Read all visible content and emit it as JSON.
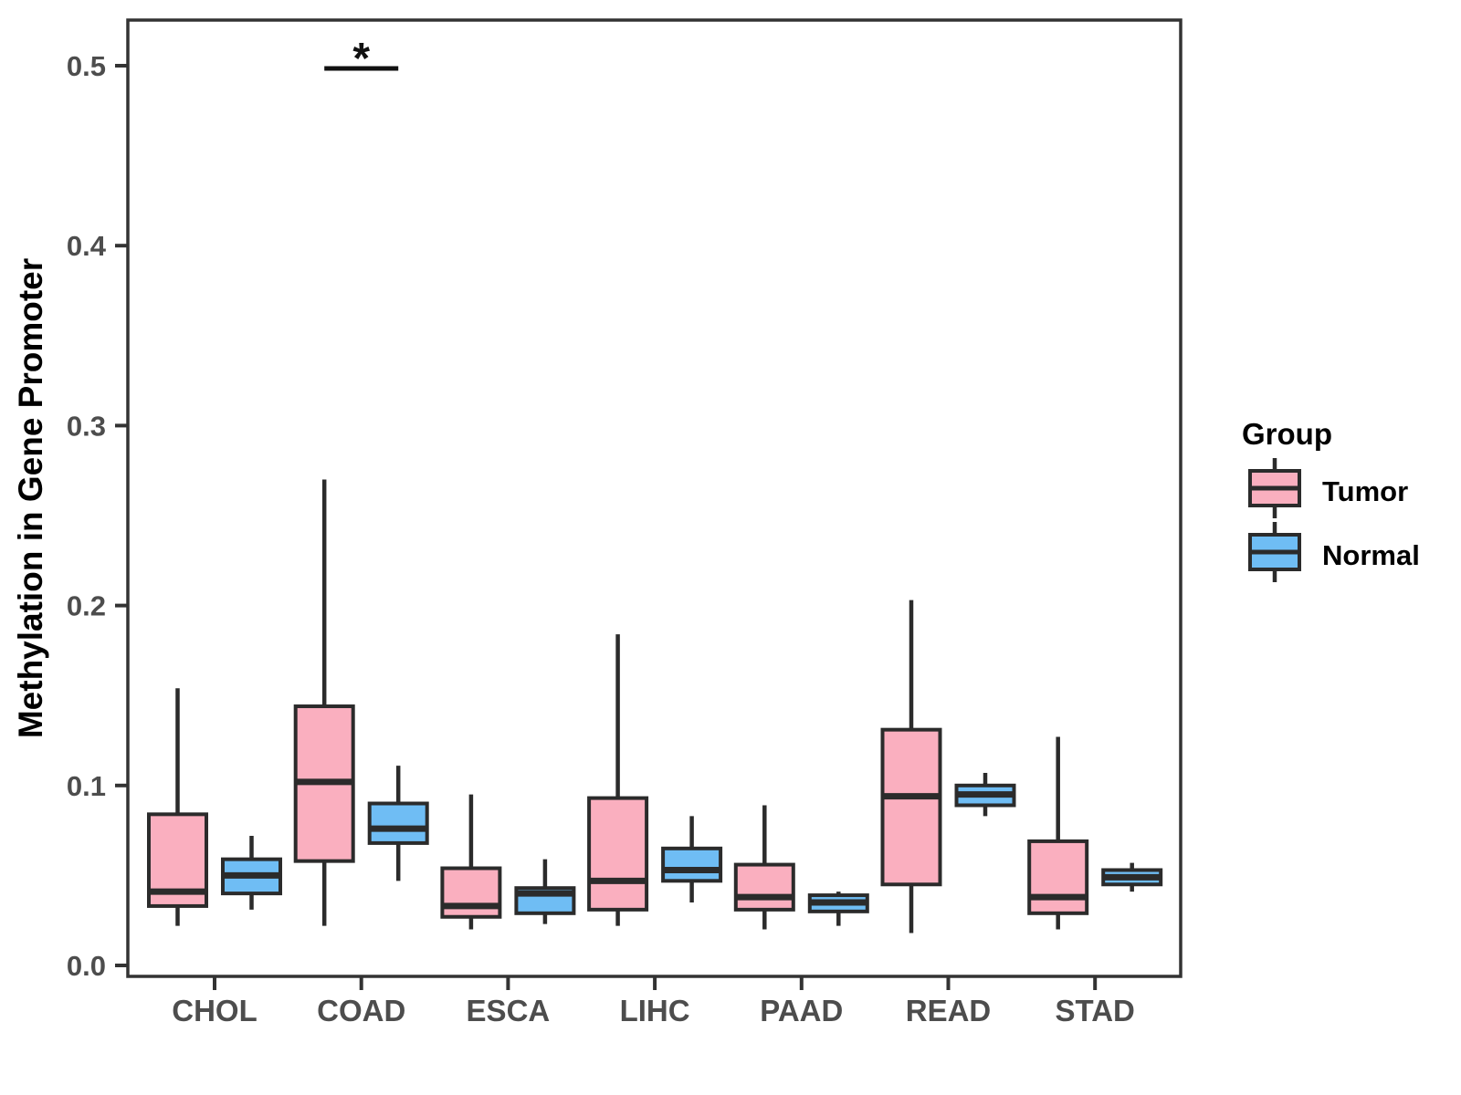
{
  "chart_data": {
    "type": "boxplot",
    "title": "",
    "ylabel": "Methylation in Gene Promoter",
    "xlabel": "",
    "categories": [
      "CHOL",
      "COAD",
      "ESCA",
      "LIHC",
      "PAAD",
      "READ",
      "STAD"
    ],
    "y_axis": {
      "min": 0.0,
      "max": 0.53,
      "tick_values": [
        0.0,
        0.1,
        0.2,
        0.3,
        0.4,
        0.5
      ],
      "tick_labels": [
        "0.0",
        "0.1",
        "0.2",
        "0.3",
        "0.4",
        "0.5"
      ],
      "grid": false
    },
    "legend": {
      "title": "Group",
      "position": "right",
      "entries": [
        {
          "label": "Tumor",
          "color": "#FAAFBF"
        },
        {
          "label": "Normal",
          "color": "#6FBDF4"
        }
      ]
    },
    "series": [
      {
        "name": "Tumor",
        "color": "#FAAFBF",
        "boxes": [
          {
            "category": "CHOL",
            "min": 0.022,
            "q1": 0.033,
            "median": 0.041,
            "q3": 0.084,
            "max": 0.154
          },
          {
            "category": "COAD",
            "min": 0.022,
            "q1": 0.058,
            "median": 0.102,
            "q3": 0.144,
            "max": 0.27
          },
          {
            "category": "ESCA",
            "min": 0.02,
            "q1": 0.027,
            "median": 0.033,
            "q3": 0.054,
            "max": 0.095
          },
          {
            "category": "LIHC",
            "min": 0.022,
            "q1": 0.031,
            "median": 0.047,
            "q3": 0.093,
            "max": 0.184
          },
          {
            "category": "PAAD",
            "min": 0.02,
            "q1": 0.031,
            "median": 0.038,
            "q3": 0.056,
            "max": 0.089
          },
          {
            "category": "READ",
            "min": 0.018,
            "q1": 0.045,
            "median": 0.094,
            "q3": 0.131,
            "max": 0.203
          },
          {
            "category": "STAD",
            "min": 0.02,
            "q1": 0.029,
            "median": 0.038,
            "q3": 0.069,
            "max": 0.127
          }
        ]
      },
      {
        "name": "Normal",
        "color": "#6FBDF4",
        "boxes": [
          {
            "category": "CHOL",
            "min": 0.031,
            "q1": 0.04,
            "median": 0.05,
            "q3": 0.059,
            "max": 0.072
          },
          {
            "category": "COAD",
            "min": 0.047,
            "q1": 0.068,
            "median": 0.076,
            "q3": 0.09,
            "max": 0.111
          },
          {
            "category": "ESCA",
            "min": 0.023,
            "q1": 0.029,
            "median": 0.04,
            "q3": 0.043,
            "max": 0.059
          },
          {
            "category": "LIHC",
            "min": 0.035,
            "q1": 0.047,
            "median": 0.053,
            "q3": 0.065,
            "max": 0.083
          },
          {
            "category": "PAAD",
            "min": 0.022,
            "q1": 0.03,
            "median": 0.035,
            "q3": 0.039,
            "max": 0.041
          },
          {
            "category": "READ",
            "min": 0.083,
            "q1": 0.089,
            "median": 0.095,
            "q3": 0.1,
            "max": 0.107
          },
          {
            "category": "STAD",
            "min": 0.041,
            "q1": 0.045,
            "median": 0.049,
            "q3": 0.053,
            "max": 0.057
          }
        ]
      }
    ],
    "annotations": [
      {
        "type": "significance-bracket",
        "category": "COAD",
        "between": [
          "Tumor",
          "Normal"
        ],
        "label": "*",
        "y_value": 0.5
      }
    ],
    "colors": {
      "box_outline": "#2B2B2B",
      "axis_text": "#4D4D4D",
      "axis_line": "#333333",
      "y_title_text": "#000000",
      "annotation": "#111111",
      "background": "#FFFFFF"
    }
  }
}
